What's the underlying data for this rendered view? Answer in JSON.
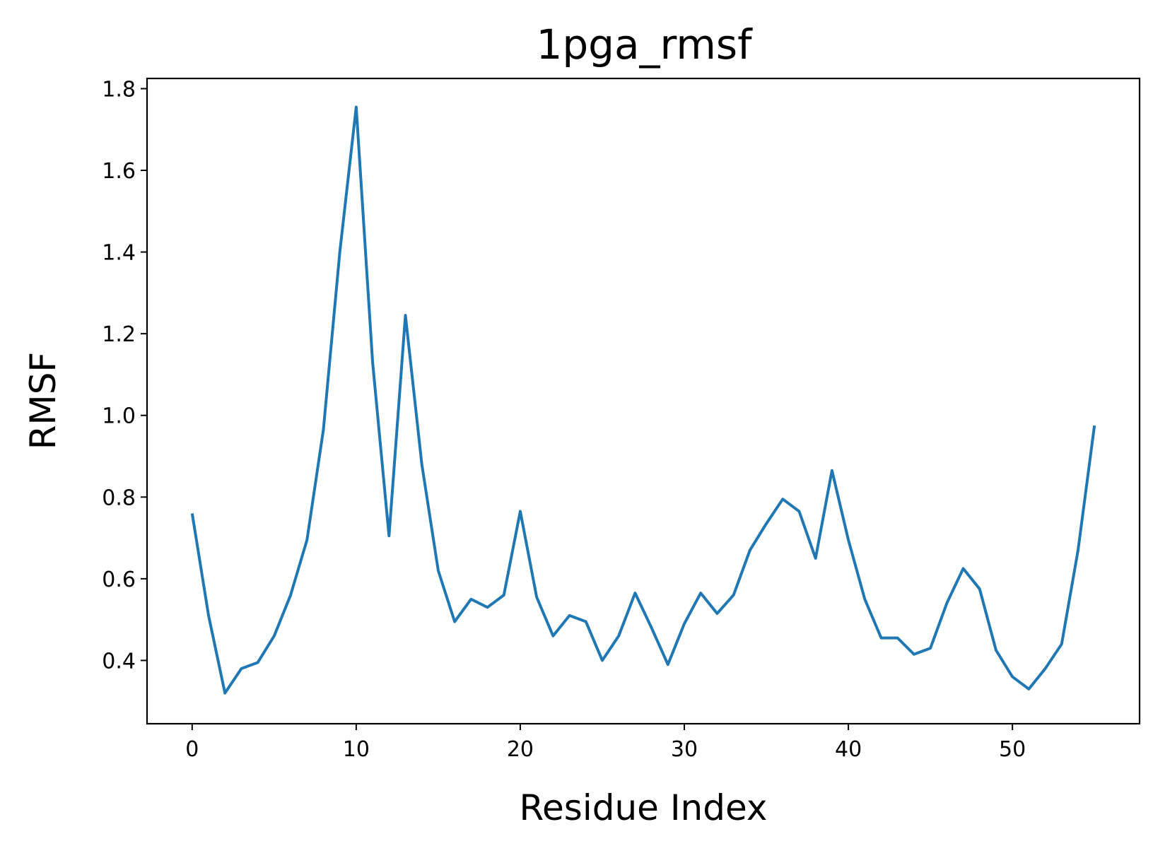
{
  "chart_data": {
    "type": "line",
    "title": "1pga_rmsf",
    "xlabel": "Residue Index",
    "ylabel": "RMSF",
    "xlim": [
      -2.75,
      57.75
    ],
    "ylim": [
      0.245,
      1.825
    ],
    "xticks": [
      0,
      10,
      20,
      30,
      40,
      50
    ],
    "xtick_labels": [
      "0",
      "10",
      "20",
      "30",
      "40",
      "50"
    ],
    "yticks": [
      0.4,
      0.6,
      0.8,
      1.0,
      1.2,
      1.4,
      1.6,
      1.8
    ],
    "ytick_labels": [
      "0.4",
      "0.6",
      "0.8",
      "1.0",
      "1.2",
      "1.4",
      "1.6",
      "1.8"
    ],
    "grid": false,
    "series": [
      {
        "color": "#1f77b4",
        "x": [
          0,
          1,
          2,
          3,
          4,
          5,
          6,
          7,
          8,
          9,
          10,
          11,
          12,
          13,
          14,
          15,
          16,
          17,
          18,
          19,
          20,
          21,
          22,
          23,
          24,
          25,
          26,
          27,
          28,
          29,
          30,
          31,
          32,
          33,
          34,
          35,
          36,
          37,
          38,
          39,
          40,
          41,
          42,
          43,
          44,
          45,
          46,
          47,
          48,
          49,
          50,
          51,
          52,
          53,
          54,
          55
        ],
        "y": [
          0.76,
          0.51,
          0.32,
          0.38,
          0.395,
          0.46,
          0.56,
          0.695,
          0.965,
          1.4,
          1.755,
          1.13,
          0.705,
          1.245,
          0.88,
          0.62,
          0.495,
          0.55,
          0.53,
          0.56,
          0.765,
          0.555,
          0.46,
          0.51,
          0.495,
          0.4,
          0.46,
          0.565,
          0.48,
          0.39,
          0.49,
          0.565,
          0.515,
          0.56,
          0.67,
          0.735,
          0.795,
          0.765,
          0.65,
          0.865,
          0.695,
          0.55,
          0.455,
          0.455,
          0.415,
          0.43,
          0.54,
          0.625,
          0.575,
          0.425,
          0.36,
          0.33,
          0.38,
          0.44,
          0.67,
          0.975
        ]
      }
    ]
  }
}
